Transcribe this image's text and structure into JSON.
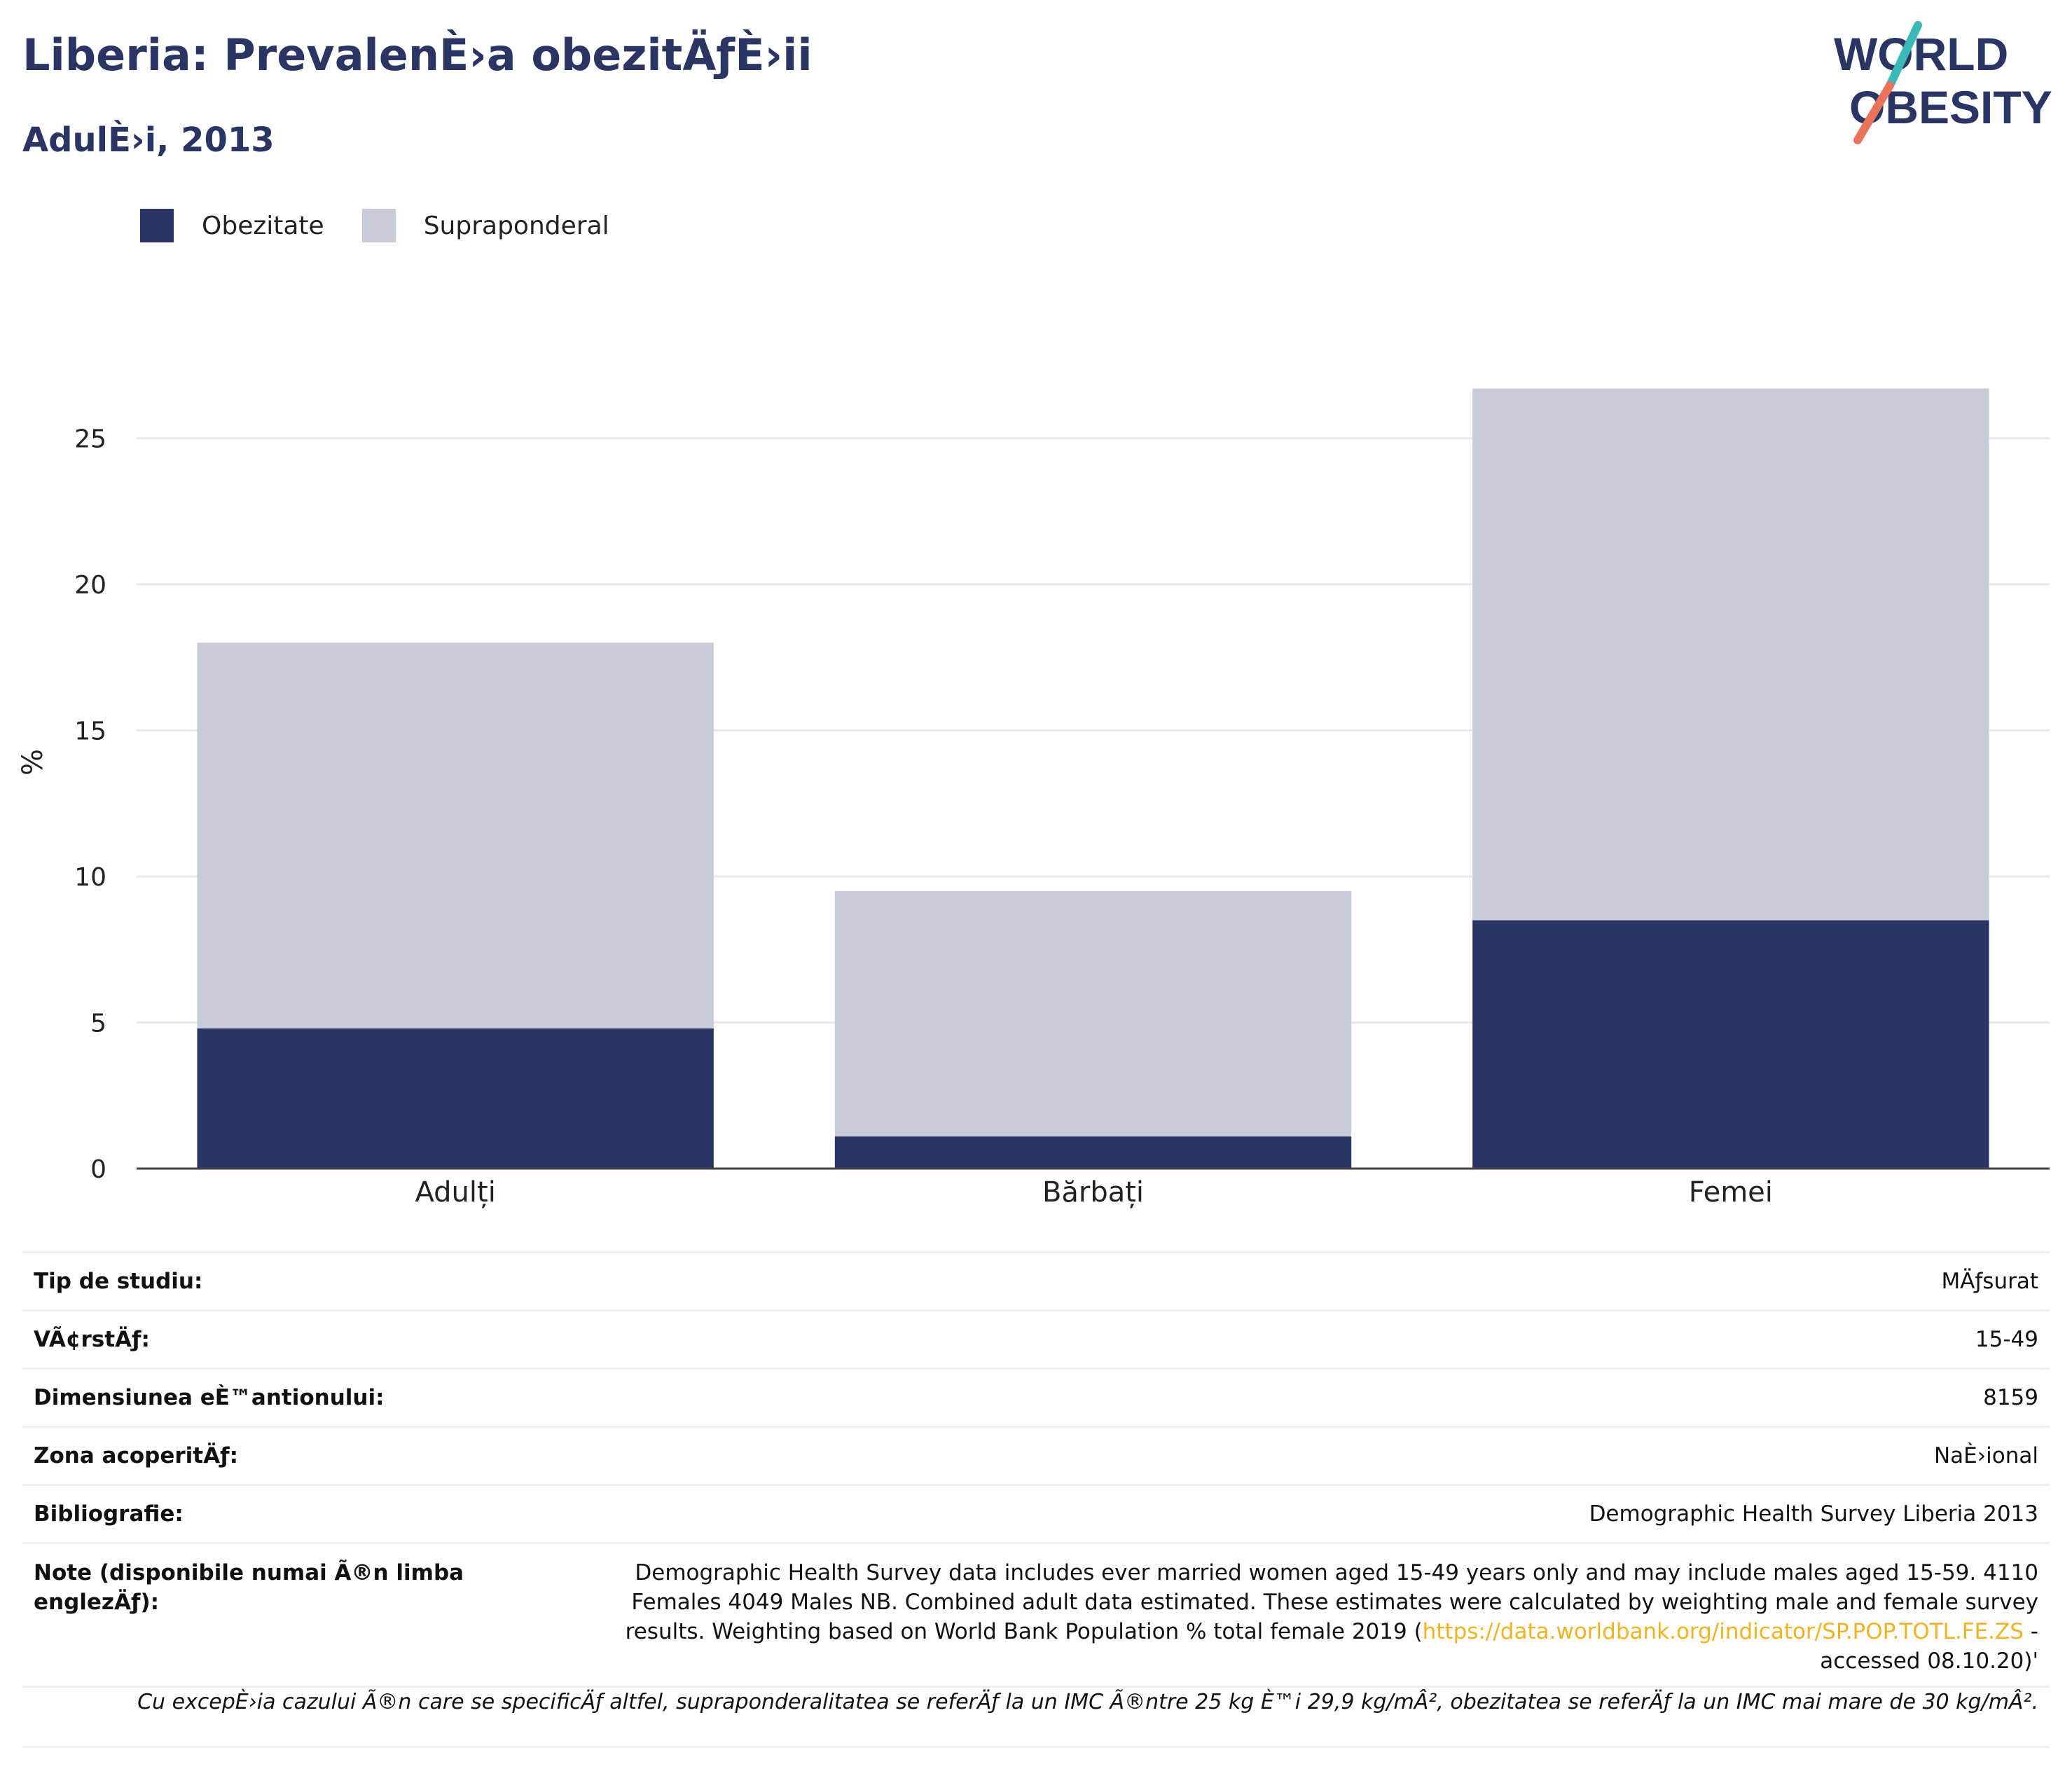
{
  "header": {
    "title": "Liberia: PrevalenÈ›a obezitÄƒÈ›ii",
    "subtitle": "AdulÈ›i, 2013"
  },
  "logo": {
    "line1": "WORLD",
    "line2": "OBESITY"
  },
  "legend": {
    "items": [
      {
        "label": "Obezitate",
        "color": "#2b3563"
      },
      {
        "label": "Supraponderal",
        "color": "#c9ccd8"
      }
    ]
  },
  "chart_data": {
    "type": "bar",
    "stacked": true,
    "categories": [
      "Adulți",
      "Bărbați",
      "Femei"
    ],
    "series": [
      {
        "name": "Obezitate",
        "values": [
          4.8,
          1.1,
          8.5
        ],
        "color": "#2b3563"
      },
      {
        "name": "Supraponderal",
        "values": [
          13.2,
          8.4,
          18.2
        ],
        "color": "#c9ccd8"
      }
    ],
    "ylabel": "%",
    "ylim": [
      0,
      30
    ],
    "yticks": [
      0,
      5,
      10,
      15,
      20,
      25
    ],
    "grid": true,
    "legend_position": "top-left"
  },
  "details": {
    "rows": [
      {
        "key": "Tip de studiu:",
        "value": "MÄƒsurat"
      },
      {
        "key": "VÃ¢rstÄƒ:",
        "value": "15-49"
      },
      {
        "key": "Dimensiunea eÈ™antionului:",
        "value": "8159"
      },
      {
        "key": "Zona acoperitÄƒ:",
        "value": "NaÈ›ional"
      },
      {
        "key": "Bibliografie:",
        "value": "Demographic Health Survey Liberia 2013"
      }
    ],
    "notes_key": "Note (disponibile numai Ã®n limba englezÄƒ):",
    "notes_text_before": "Demographic Health Survey data includes ever married women aged 15-49 years only and may include males aged 15-59. 4110 Females 4049 Males NB. Combined adult data estimated. These estimates were calculated by weighting male and female survey results. Weighting based on World Bank Population % total female 2019 (",
    "notes_link": "https://data.worldbank.org/indicator/SP.POP.TOTL.FE.ZS",
    "notes_text_after": " - accessed 08.10.20)'"
  },
  "footnote": "Cu excepÈ›ia cazului Ã®n care se specificÄƒ altfel, supraponderalitatea se referÄƒ la un IMC Ã®ntre 25 kg È™i 29,9 kg/mÂ², obezitatea se referÄƒ la un IMC mai mare de 30 kg/mÂ²."
}
